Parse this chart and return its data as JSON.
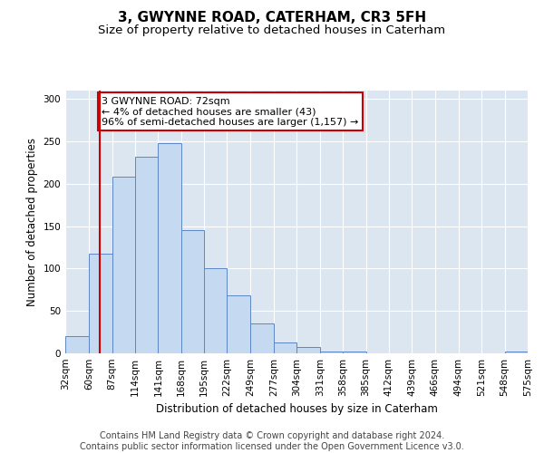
{
  "title": "3, GWYNNE ROAD, CATERHAM, CR3 5FH",
  "subtitle": "Size of property relative to detached houses in Caterham",
  "xlabel": "Distribution of detached houses by size in Caterham",
  "ylabel": "Number of detached properties",
  "footer_line1": "Contains HM Land Registry data © Crown copyright and database right 2024.",
  "footer_line2": "Contains public sector information licensed under the Open Government Licence v3.0.",
  "bins": [
    "32sqm",
    "60sqm",
    "87sqm",
    "114sqm",
    "141sqm",
    "168sqm",
    "195sqm",
    "222sqm",
    "249sqm",
    "277sqm",
    "304sqm",
    "331sqm",
    "358sqm",
    "385sqm",
    "412sqm",
    "439sqm",
    "466sqm",
    "494sqm",
    "521sqm",
    "548sqm",
    "575sqm"
  ],
  "hist_values": [
    20,
    118,
    208,
    232,
    248,
    145,
    101,
    68,
    35,
    13,
    8,
    2,
    2,
    0,
    0,
    0,
    0,
    0,
    0,
    2
  ],
  "bar_color": "#c5d9f1",
  "bar_edge_color": "#5b87c5",
  "property_line_x": 72,
  "property_line_color": "#cc0000",
  "annotation_text": "3 GWYNNE ROAD: 72sqm\n← 4% of detached houses are smaller (43)\n96% of semi-detached houses are larger (1,157) →",
  "ylim": [
    0,
    310
  ],
  "yticks": [
    0,
    50,
    100,
    150,
    200,
    250,
    300
  ],
  "bg_color": "#dce6f1",
  "grid_color": "#ffffff",
  "title_fontsize": 11,
  "subtitle_fontsize": 9.5,
  "axis_label_fontsize": 8.5,
  "tick_fontsize": 7.5,
  "footer_fontsize": 7,
  "annotation_fontsize": 8
}
